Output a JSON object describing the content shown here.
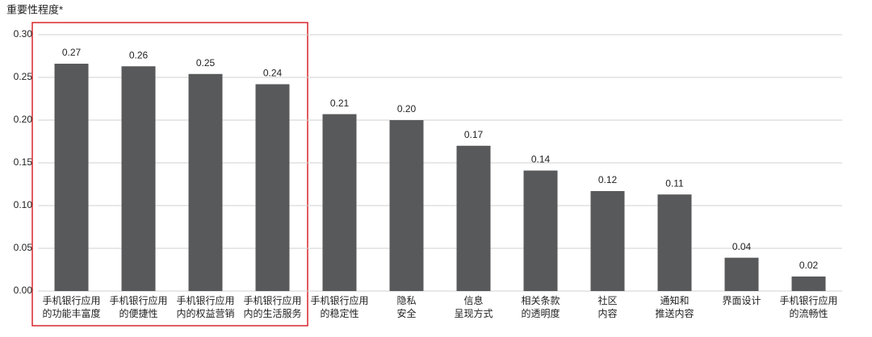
{
  "chart_data": {
    "type": "bar",
    "y_label": "重要性程度*",
    "categories": [
      [
        "手机银行应用",
        "的功能丰富度"
      ],
      [
        "手机银行应用",
        "的便捷性"
      ],
      [
        "手机银行应用",
        "内的权益营销"
      ],
      [
        "手机银行应用",
        "内的生活服务"
      ],
      [
        "手机银行应用",
        "的稳定性"
      ],
      [
        "隐私",
        "安全"
      ],
      [
        "信息",
        "呈现方式"
      ],
      [
        "相关条款",
        "的透明度"
      ],
      [
        "社区",
        "内容"
      ],
      [
        "通知和",
        "推送内容"
      ],
      [
        "界面设计"
      ],
      [
        "手机银行应用",
        "的流畅性"
      ]
    ],
    "values": [
      0.266,
      0.263,
      0.254,
      0.242,
      0.207,
      0.2,
      0.17,
      0.141,
      0.117,
      0.113,
      0.039,
      0.017
    ],
    "value_labels": [
      "0.27",
      "0.26",
      "0.25",
      "0.24",
      "0.21",
      "0.20",
      "0.17",
      "0.14",
      "0.12",
      "0.11",
      "0.04",
      "0.02"
    ],
    "color": "#58595b",
    "ylim": [
      0,
      0.3
    ],
    "yticks": [
      {
        "value": 0,
        "label": "0.00"
      },
      0.05,
      {
        "value": 0.1,
        "label": "0.10"
      },
      0.15,
      {
        "value": 0.2,
        "label": "0.20"
      },
      0.25,
      {
        "value": 0.3,
        "label": "0.30"
      }
    ],
    "grid": true
  }
}
